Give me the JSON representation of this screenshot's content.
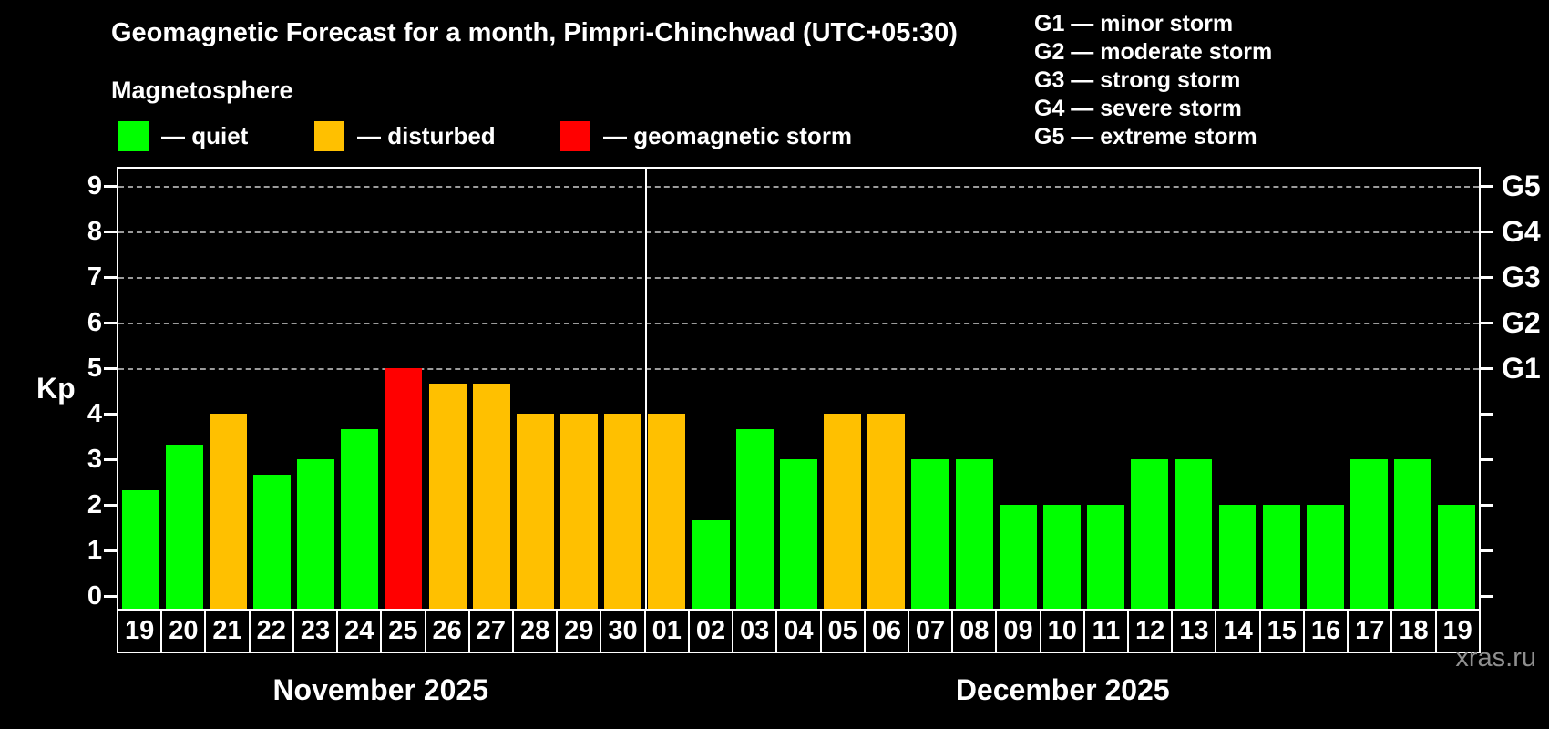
{
  "header": {
    "title": "Geomagnetic Forecast for a month, Pimpri-Chinchwad (UTC+05:30)",
    "subtitle": "Magnetosphere"
  },
  "legend": {
    "items": [
      {
        "key": "quiet",
        "label": "— quiet",
        "color": "#00ff00"
      },
      {
        "key": "disturbed",
        "label": "— disturbed",
        "color": "#ffc000"
      },
      {
        "key": "storm",
        "label": "— geomagnetic storm",
        "color": "#ff0000"
      }
    ]
  },
  "g_scale_legend": {
    "items": [
      "G1 — minor storm",
      "G2 — moderate storm",
      "G3 — strong storm",
      "G4 — severe storm",
      "G5 — extreme storm"
    ]
  },
  "chart_data": {
    "type": "bar",
    "title": "Geomagnetic Forecast for a month, Pimpri-Chinchwad (UTC+05:30)",
    "xlabel": "",
    "ylabel": "Kp",
    "ylim": [
      0,
      9.4
    ],
    "yticks": [
      0,
      1,
      2,
      3,
      4,
      5,
      6,
      7,
      8,
      9
    ],
    "grid": "horizontal dashed lines at Kp 5-9 (G1-G5 levels)",
    "legend_position": "top-left",
    "g_levels": [
      {
        "kp": 5,
        "label": "G1"
      },
      {
        "kp": 6,
        "label": "G2"
      },
      {
        "kp": 7,
        "label": "G3"
      },
      {
        "kp": 8,
        "label": "G4"
      },
      {
        "kp": 9,
        "label": "G5"
      }
    ],
    "months": [
      {
        "key": "nov",
        "label": "November 2025",
        "days": 12
      },
      {
        "key": "dec",
        "label": "December 2025",
        "days": 19
      }
    ],
    "colors": {
      "quiet": "#00ff00",
      "disturbed": "#ffc000",
      "storm": "#ff0000"
    },
    "bars": [
      {
        "month": "nov",
        "day": "19",
        "value": 2.33,
        "state": "quiet"
      },
      {
        "month": "nov",
        "day": "20",
        "value": 3.33,
        "state": "quiet"
      },
      {
        "month": "nov",
        "day": "21",
        "value": 4.0,
        "state": "disturbed"
      },
      {
        "month": "nov",
        "day": "22",
        "value": 2.67,
        "state": "quiet"
      },
      {
        "month": "nov",
        "day": "23",
        "value": 3.0,
        "state": "quiet"
      },
      {
        "month": "nov",
        "day": "24",
        "value": 3.67,
        "state": "quiet"
      },
      {
        "month": "nov",
        "day": "25",
        "value": 5.0,
        "state": "storm"
      },
      {
        "month": "nov",
        "day": "26",
        "value": 4.67,
        "state": "disturbed"
      },
      {
        "month": "nov",
        "day": "27",
        "value": 4.67,
        "state": "disturbed"
      },
      {
        "month": "nov",
        "day": "28",
        "value": 4.0,
        "state": "disturbed"
      },
      {
        "month": "nov",
        "day": "29",
        "value": 4.0,
        "state": "disturbed"
      },
      {
        "month": "nov",
        "day": "30",
        "value": 4.0,
        "state": "disturbed"
      },
      {
        "month": "dec",
        "day": "01",
        "value": 4.0,
        "state": "disturbed"
      },
      {
        "month": "dec",
        "day": "02",
        "value": 1.67,
        "state": "quiet"
      },
      {
        "month": "dec",
        "day": "03",
        "value": 3.67,
        "state": "quiet"
      },
      {
        "month": "dec",
        "day": "04",
        "value": 3.0,
        "state": "quiet"
      },
      {
        "month": "dec",
        "day": "05",
        "value": 4.0,
        "state": "disturbed"
      },
      {
        "month": "dec",
        "day": "06",
        "value": 4.0,
        "state": "disturbed"
      },
      {
        "month": "dec",
        "day": "07",
        "value": 3.0,
        "state": "quiet"
      },
      {
        "month": "dec",
        "day": "08",
        "value": 3.0,
        "state": "quiet"
      },
      {
        "month": "dec",
        "day": "09",
        "value": 2.0,
        "state": "quiet"
      },
      {
        "month": "dec",
        "day": "10",
        "value": 2.0,
        "state": "quiet"
      },
      {
        "month": "dec",
        "day": "11",
        "value": 2.0,
        "state": "quiet"
      },
      {
        "month": "dec",
        "day": "12",
        "value": 3.0,
        "state": "quiet"
      },
      {
        "month": "dec",
        "day": "13",
        "value": 3.0,
        "state": "quiet"
      },
      {
        "month": "dec",
        "day": "14",
        "value": 2.0,
        "state": "quiet"
      },
      {
        "month": "dec",
        "day": "15",
        "value": 2.0,
        "state": "quiet"
      },
      {
        "month": "dec",
        "day": "16",
        "value": 2.0,
        "state": "quiet"
      },
      {
        "month": "dec",
        "day": "17",
        "value": 3.0,
        "state": "quiet"
      },
      {
        "month": "dec",
        "day": "18",
        "value": 3.0,
        "state": "quiet"
      },
      {
        "month": "dec",
        "day": "19",
        "value": 2.0,
        "state": "quiet"
      }
    ]
  },
  "watermark": "xras.ru"
}
